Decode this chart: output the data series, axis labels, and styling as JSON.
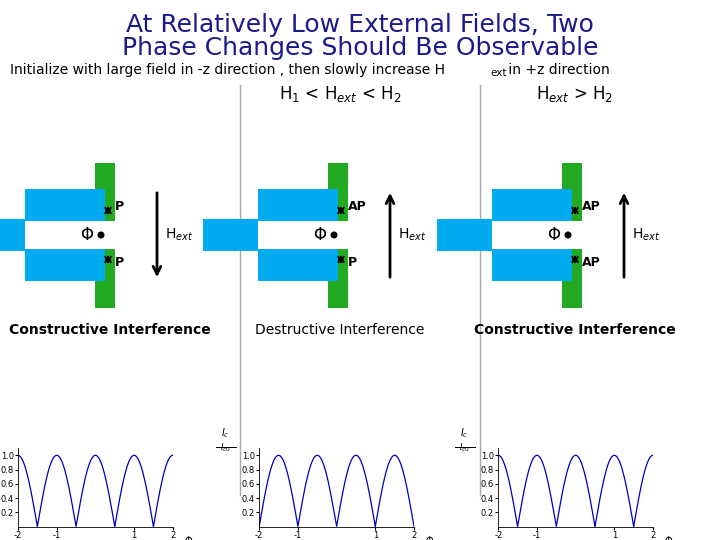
{
  "title_line1": "At Relatively Low External Fields, Two",
  "title_line2": "Phase Changes Should Be Observable",
  "title_color": "#1a1a8c",
  "title_fontsize": 18,
  "bg_color": "#ffffff",
  "green_color": "#22aa22",
  "cyan_color": "#00aaee",
  "plot_line_color": "#0000bb",
  "divider_color": "#aaaaaa",
  "panel1_label": "H$_1$ < H$_{ext}$ < H$_2$",
  "panel2_label": "H$_{ext}$ > H$_2$",
  "interference_labels": [
    "Constructive Interference",
    "Destructive Interference",
    "Constructive Interference"
  ],
  "interference_bold": [
    true,
    false,
    true
  ]
}
